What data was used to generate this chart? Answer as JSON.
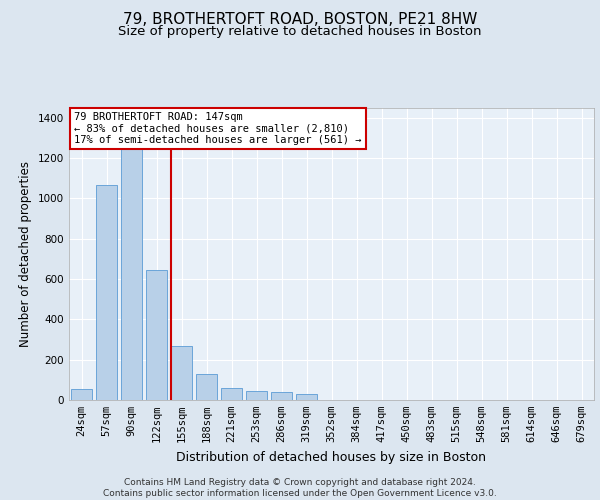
{
  "title_line1": "79, BROTHERTOFT ROAD, BOSTON, PE21 8HW",
  "title_line2": "Size of property relative to detached houses in Boston",
  "xlabel": "Distribution of detached houses by size in Boston",
  "ylabel": "Number of detached properties",
  "categories": [
    "24sqm",
    "57sqm",
    "90sqm",
    "122sqm",
    "155sqm",
    "188sqm",
    "221sqm",
    "253sqm",
    "286sqm",
    "319sqm",
    "352sqm",
    "384sqm",
    "417sqm",
    "450sqm",
    "483sqm",
    "515sqm",
    "548sqm",
    "581sqm",
    "614sqm",
    "646sqm",
    "679sqm"
  ],
  "values": [
    55,
    1065,
    1270,
    645,
    270,
    130,
    60,
    45,
    40,
    32,
    0,
    0,
    0,
    0,
    0,
    0,
    0,
    0,
    0,
    0,
    0
  ],
  "bar_color": "#b8d0e8",
  "bar_edgecolor": "#5b9bd5",
  "vline_color": "#cc0000",
  "annotation_text": "79 BROTHERTOFT ROAD: 147sqm\n← 83% of detached houses are smaller (2,810)\n17% of semi-detached houses are larger (561) →",
  "annotation_box_color": "#ffffff",
  "annotation_box_edgecolor": "#cc0000",
  "footer_text": "Contains HM Land Registry data © Crown copyright and database right 2024.\nContains public sector information licensed under the Open Government Licence v3.0.",
  "ylim": [
    0,
    1450
  ],
  "yticks": [
    0,
    200,
    400,
    600,
    800,
    1000,
    1200,
    1400
  ],
  "background_color": "#dce6f0",
  "plot_background_color": "#e8f0f8",
  "grid_color": "#ffffff",
  "title_fontsize": 11,
  "subtitle_fontsize": 9.5,
  "axis_label_fontsize": 8.5,
  "tick_fontsize": 7.5,
  "footer_fontsize": 6.5,
  "annot_fontsize": 7.5
}
